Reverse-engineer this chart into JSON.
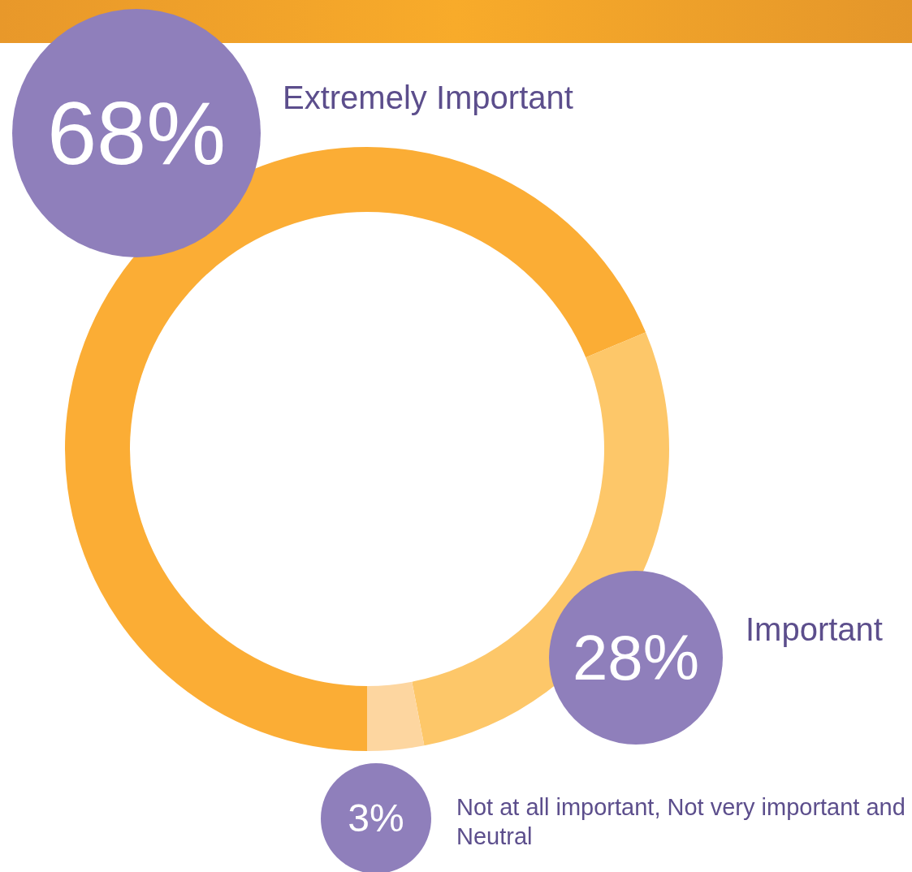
{
  "chart_data": {
    "type": "donut",
    "categories": [
      "Extremely Important",
      "Important",
      "Not at all important, Not very important and Neutral"
    ],
    "values": [
      68,
      28,
      3
    ],
    "value_labels": [
      "68%",
      "28%",
      "3%"
    ],
    "colors": [
      "#fbad35",
      "#fdc769",
      "#fdd6a0"
    ],
    "legend": false
  }
}
